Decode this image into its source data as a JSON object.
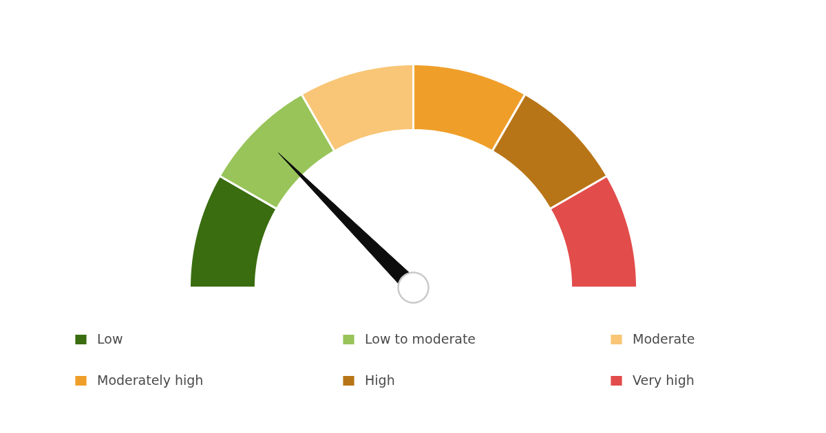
{
  "chart_data": {
    "type": "donut",
    "categories": [
      "Low",
      "Low to moderate",
      "Moderate",
      "Moderately high",
      "High",
      "Very high"
    ],
    "values": [
      16.67,
      16.67,
      16.66,
      16.67,
      16.67,
      16.66
    ],
    "colors": [
      "#3a6d10",
      "#98c45a",
      "#f8c676",
      "#ef9f29",
      "#b87517",
      "#e24c4b"
    ],
    "needle": "Low to moderate",
    "legend": "bottom"
  }
}
